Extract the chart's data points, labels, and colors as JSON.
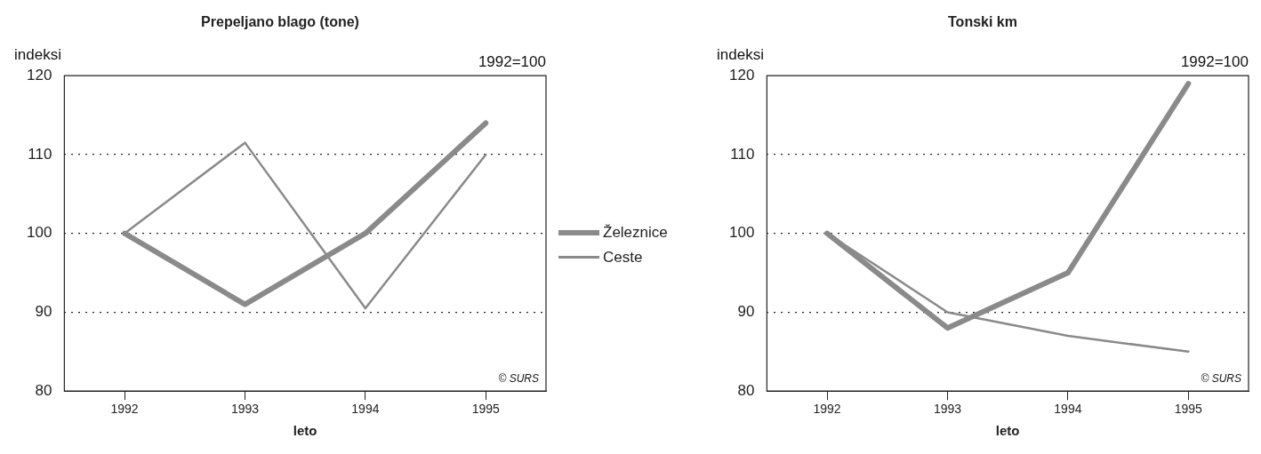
{
  "chart_data": [
    {
      "type": "line",
      "title": "Prepeljano blago (tone)",
      "xlabel": "leto",
      "ylabel": "indeksi",
      "annotations": [
        "1992=100",
        "© SURS"
      ],
      "categories": [
        "1992",
        "1993",
        "1994",
        "1995"
      ],
      "series": [
        {
          "name": "Železnice",
          "color": "#8a8a8a",
          "values": [
            100,
            91,
            100,
            114
          ]
        },
        {
          "name": "Ceste",
          "color": "#8a8a8a",
          "values": [
            100,
            111.5,
            90.5,
            110
          ]
        }
      ],
      "ylim": [
        80,
        120
      ],
      "yticks": [
        80,
        90,
        100,
        110,
        120
      ],
      "grid": "y",
      "legend": "right",
      "marker": "none",
      "line_style": "solid"
    },
    {
      "type": "line",
      "title": "Tonski km",
      "xlabel": "leto",
      "ylabel": "indeksi",
      "annotations": [
        "1992=100",
        "© SURS"
      ],
      "categories": [
        "1992",
        "1993",
        "1994",
        "1995"
      ],
      "series": [
        {
          "name": "Železnice",
          "color": "#8a8a8a",
          "values": [
            100,
            88,
            95,
            119
          ]
        },
        {
          "name": "Ceste",
          "color": "#8a8a8a",
          "values": [
            100,
            90,
            87,
            85
          ]
        }
      ],
      "ylim": [
        80,
        120
      ],
      "yticks": [
        80,
        90,
        100,
        110,
        120
      ],
      "grid": "y",
      "legend": "left",
      "marker": "none",
      "line_style": "solid"
    }
  ]
}
